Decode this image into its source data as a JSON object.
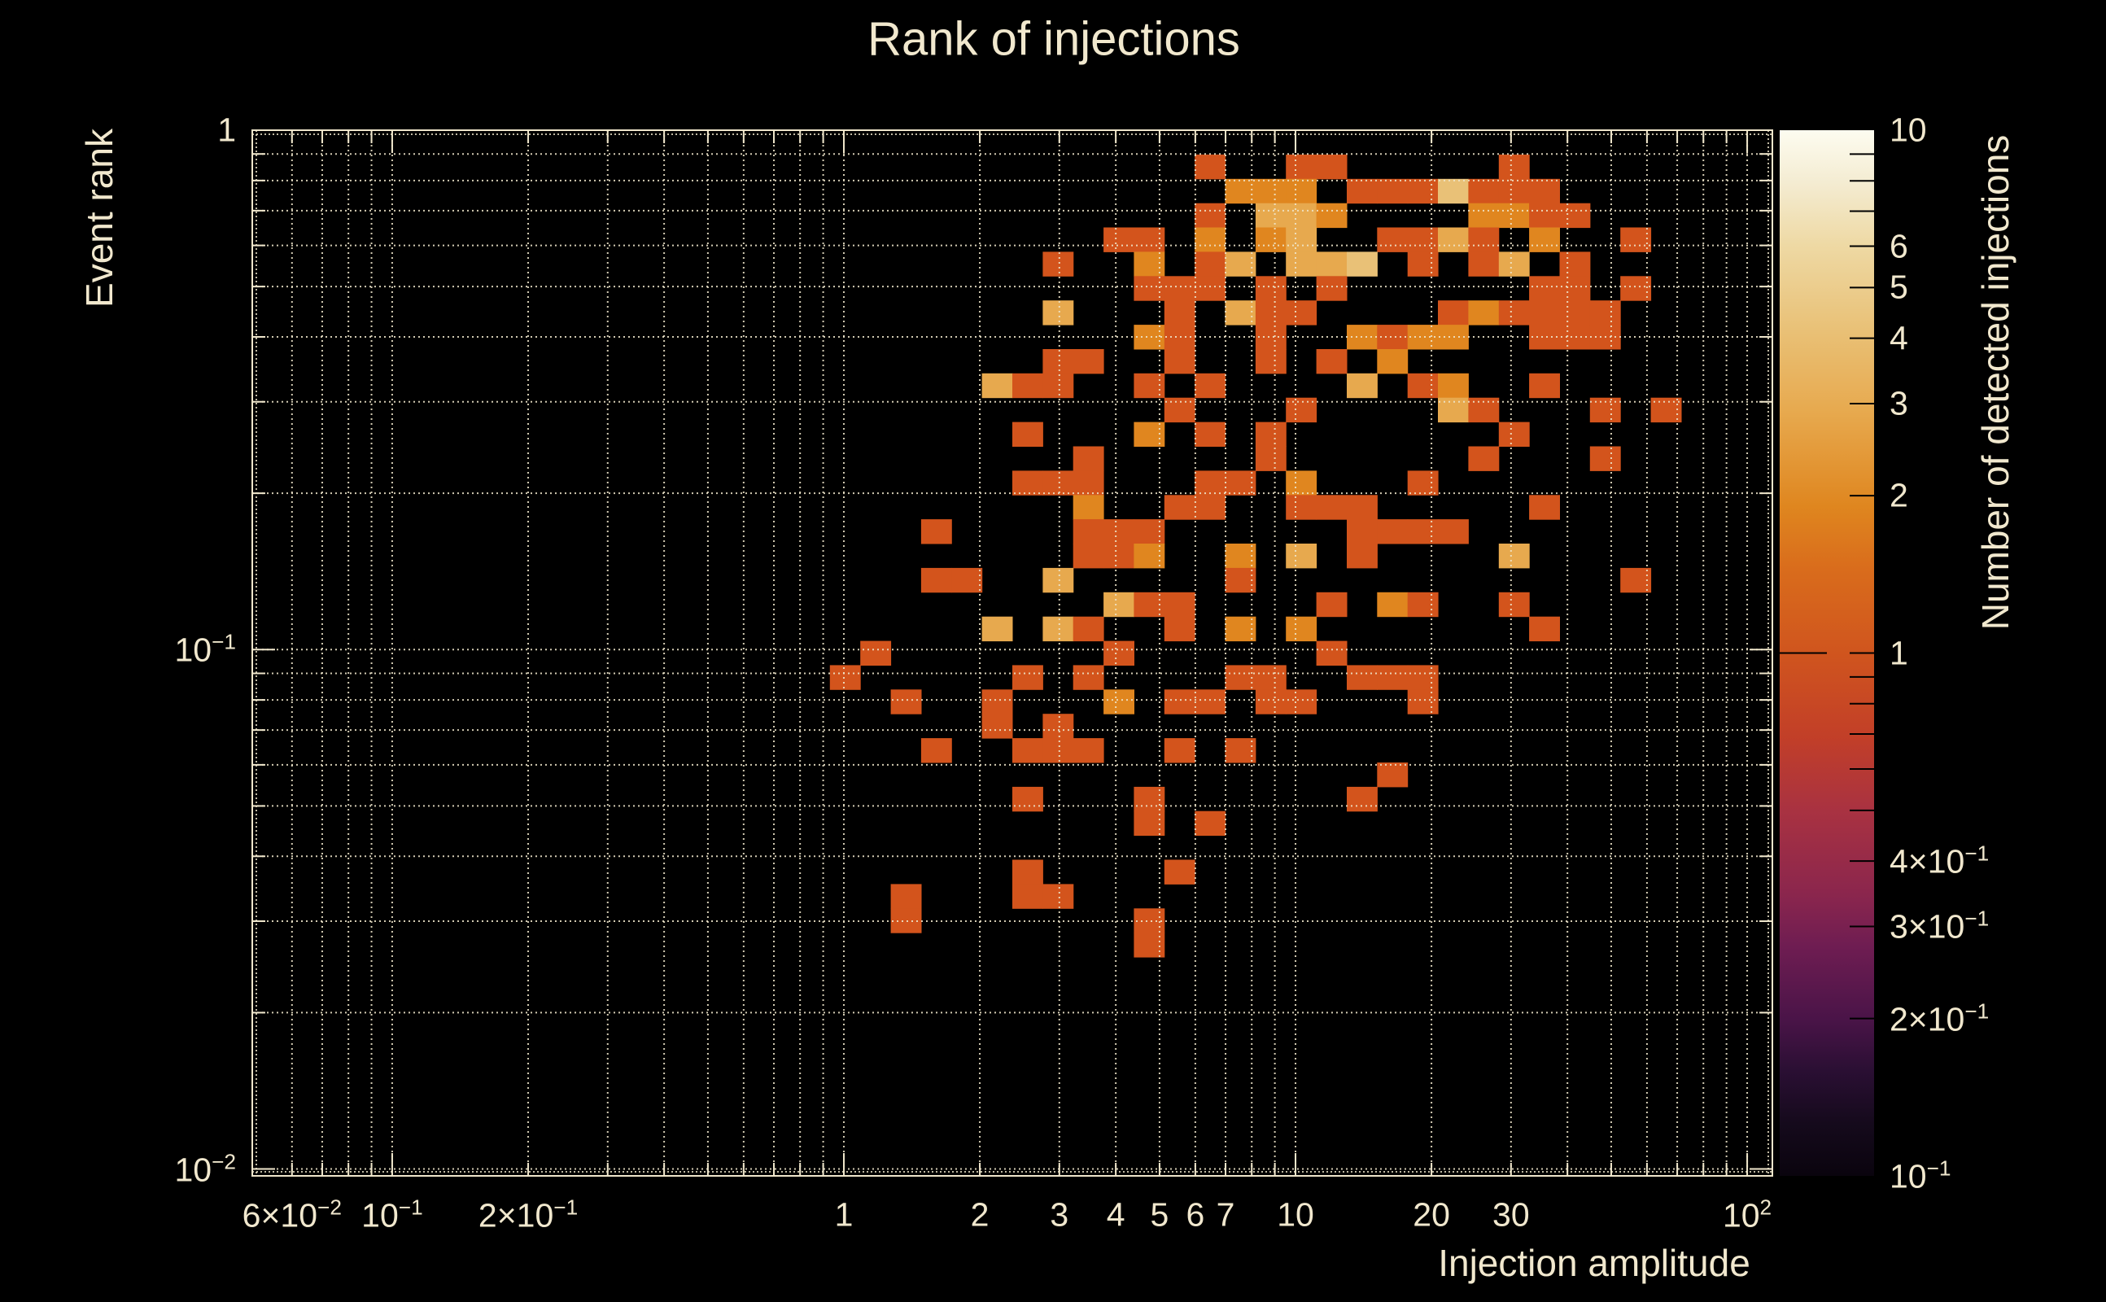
{
  "title": "Rank of injections",
  "colors": {
    "background": "#000000",
    "text": "#f1e8ce",
    "grid": "#efe6cb",
    "frame": "#efe6cb",
    "colorbar_tick": "#000000"
  },
  "chart_data": {
    "type": "heatmap",
    "title": "Rank of injections",
    "xlabel": "Injection amplitude",
    "ylabel": "Event rank",
    "zlabel": "Number of detected injections",
    "x_scale": "log",
    "y_scale": "log",
    "z_scale": "log",
    "xlim": [
      0.049,
      113.7
    ],
    "ylim": [
      0.0097,
      1.0
    ],
    "zlim": [
      0.1,
      10
    ],
    "grid": "on",
    "n_cols": 50,
    "n_rows": 43,
    "x_tick_labels": [
      {
        "value": 0.06,
        "mant": "6×10",
        "exp": "−2"
      },
      {
        "value": 0.1,
        "mant": "10",
        "exp": "−1"
      },
      {
        "value": 0.2,
        "mant": "2×10",
        "exp": "−1"
      },
      {
        "value": 1,
        "mant": "1",
        "exp": ""
      },
      {
        "value": 2,
        "mant": "2",
        "exp": ""
      },
      {
        "value": 3,
        "mant": "3",
        "exp": ""
      },
      {
        "value": 4,
        "mant": "4",
        "exp": ""
      },
      {
        "value": 5,
        "mant": "5",
        "exp": ""
      },
      {
        "value": 6,
        "mant": "6",
        "exp": ""
      },
      {
        "value": 7,
        "mant": "7",
        "exp": ""
      },
      {
        "value": 10,
        "mant": "10",
        "exp": ""
      },
      {
        "value": 20,
        "mant": "20",
        "exp": ""
      },
      {
        "value": 30,
        "mant": "30",
        "exp": ""
      },
      {
        "value": 100,
        "mant": "10",
        "exp": "2"
      }
    ],
    "y_tick_labels": [
      {
        "value": 1,
        "mant": "1",
        "exp": ""
      },
      {
        "value": 0.1,
        "mant": "10",
        "exp": "−1"
      },
      {
        "value": 0.01,
        "mant": "10",
        "exp": "−2"
      }
    ],
    "z_tick_labels": [
      {
        "value": 10,
        "mant": "10",
        "exp": ""
      },
      {
        "value": 6,
        "mant": "6",
        "exp": ""
      },
      {
        "value": 5,
        "mant": "5",
        "exp": ""
      },
      {
        "value": 4,
        "mant": "4",
        "exp": ""
      },
      {
        "value": 3,
        "mant": "3",
        "exp": ""
      },
      {
        "value": 2,
        "mant": "2",
        "exp": ""
      },
      {
        "value": 1,
        "mant": "1",
        "exp": ""
      },
      {
        "value": 0.4,
        "mant": "4×10",
        "exp": "−1"
      },
      {
        "value": 0.3,
        "mant": "3×10",
        "exp": "−1"
      },
      {
        "value": 0.2,
        "mant": "2×10",
        "exp": "−1"
      },
      {
        "value": 0.1,
        "mant": "10",
        "exp": "−1"
      }
    ],
    "z_minor_ticks": [
      0.2,
      0.3,
      0.4,
      0.5,
      0.6,
      0.7,
      0.8,
      0.9,
      2,
      3,
      4,
      5,
      6,
      7,
      8,
      9
    ],
    "grid_x": [
      0.06,
      0.07,
      0.08,
      0.09,
      0.1,
      0.2,
      0.3,
      0.4,
      0.5,
      0.6,
      0.7,
      0.8,
      0.9,
      1,
      2,
      3,
      4,
      5,
      6,
      7,
      8,
      9,
      10,
      20,
      30,
      40,
      50,
      60,
      70,
      80,
      90,
      100
    ],
    "grid_y": [
      0.01,
      0.02,
      0.03,
      0.04,
      0.05,
      0.06,
      0.07,
      0.08,
      0.09,
      0.1,
      0.2,
      0.3,
      0.4,
      0.5,
      0.6,
      0.7,
      0.8,
      0.9
    ],
    "major_x": [
      0.1,
      1,
      10,
      100
    ],
    "major_y": [
      0.01,
      0.1,
      1
    ],
    "value_colors": {
      "1": "#d3541c",
      "2": "#e0861f",
      "3": "#e7a94e",
      "4": "#e9c177",
      "5": "#ecd08e",
      "6": "#eed9a4",
      "10": "#fdfcf0"
    },
    "colorbar_gradient": [
      [
        0.0,
        "#0a040e"
      ],
      [
        0.05,
        "#150a1c"
      ],
      [
        0.1,
        "#2a0f33"
      ],
      [
        0.15,
        "#4a1448"
      ],
      [
        0.22,
        "#6f1d52"
      ],
      [
        0.27,
        "#8b264d"
      ],
      [
        0.35,
        "#a93241"
      ],
      [
        0.42,
        "#c23f28"
      ],
      [
        0.5,
        "#d0551e"
      ],
      [
        0.58,
        "#d96c1c"
      ],
      [
        0.64,
        "#df861f"
      ],
      [
        0.73,
        "#e7a94e"
      ],
      [
        0.81,
        "#e9c177"
      ],
      [
        0.89,
        "#eed9a4"
      ],
      [
        0.95,
        "#f4ecd2"
      ],
      [
        1.0,
        "#fdfcf0"
      ]
    ],
    "cells": [
      [
        31,
        1,
        1
      ],
      [
        34,
        1,
        1
      ],
      [
        35,
        1,
        1
      ],
      [
        41,
        1,
        1
      ],
      [
        32,
        2,
        2
      ],
      [
        33,
        2,
        2
      ],
      [
        34,
        2,
        2
      ],
      [
        36,
        2,
        1
      ],
      [
        37,
        2,
        1
      ],
      [
        38,
        2,
        1
      ],
      [
        39,
        2,
        4
      ],
      [
        40,
        2,
        1
      ],
      [
        41,
        2,
        1
      ],
      [
        42,
        2,
        1
      ],
      [
        31,
        3,
        1
      ],
      [
        33,
        3,
        3
      ],
      [
        34,
        3,
        3
      ],
      [
        35,
        3,
        2
      ],
      [
        40,
        3,
        2
      ],
      [
        41,
        3,
        2
      ],
      [
        42,
        3,
        1
      ],
      [
        43,
        3,
        1
      ],
      [
        28,
        4,
        1
      ],
      [
        29,
        4,
        1
      ],
      [
        31,
        4,
        2
      ],
      [
        33,
        4,
        2
      ],
      [
        34,
        4,
        3
      ],
      [
        37,
        4,
        1
      ],
      [
        38,
        4,
        1
      ],
      [
        39,
        4,
        3
      ],
      [
        40,
        4,
        1
      ],
      [
        42,
        4,
        2
      ],
      [
        45,
        4,
        1
      ],
      [
        26,
        5,
        1
      ],
      [
        29,
        5,
        2
      ],
      [
        31,
        5,
        1
      ],
      [
        32,
        5,
        3
      ],
      [
        34,
        5,
        3
      ],
      [
        35,
        5,
        3
      ],
      [
        36,
        5,
        4
      ],
      [
        38,
        5,
        1
      ],
      [
        40,
        5,
        1
      ],
      [
        41,
        5,
        3
      ],
      [
        43,
        5,
        1
      ],
      [
        29,
        6,
        1
      ],
      [
        30,
        6,
        1
      ],
      [
        31,
        6,
        1
      ],
      [
        33,
        6,
        1
      ],
      [
        35,
        6,
        1
      ],
      [
        42,
        6,
        1
      ],
      [
        43,
        6,
        1
      ],
      [
        45,
        6,
        1
      ],
      [
        26,
        7,
        3
      ],
      [
        30,
        7,
        1
      ],
      [
        32,
        7,
        3
      ],
      [
        33,
        7,
        1
      ],
      [
        34,
        7,
        1
      ],
      [
        39,
        7,
        1
      ],
      [
        40,
        7,
        2
      ],
      [
        41,
        7,
        1
      ],
      [
        42,
        7,
        1
      ],
      [
        43,
        7,
        1
      ],
      [
        44,
        7,
        1
      ],
      [
        29,
        8,
        2
      ],
      [
        30,
        8,
        1
      ],
      [
        33,
        8,
        1
      ],
      [
        36,
        8,
        2
      ],
      [
        37,
        8,
        1
      ],
      [
        38,
        8,
        2
      ],
      [
        39,
        8,
        2
      ],
      [
        42,
        8,
        1
      ],
      [
        43,
        8,
        1
      ],
      [
        44,
        8,
        1
      ],
      [
        26,
        9,
        1
      ],
      [
        27,
        9,
        1
      ],
      [
        30,
        9,
        1
      ],
      [
        33,
        9,
        1
      ],
      [
        35,
        9,
        1
      ],
      [
        37,
        9,
        2
      ],
      [
        24,
        10,
        3
      ],
      [
        25,
        10,
        1
      ],
      [
        26,
        10,
        1
      ],
      [
        29,
        10,
        1
      ],
      [
        31,
        10,
        1
      ],
      [
        36,
        10,
        3
      ],
      [
        38,
        10,
        1
      ],
      [
        39,
        10,
        2
      ],
      [
        42,
        10,
        1
      ],
      [
        30,
        11,
        1
      ],
      [
        34,
        11,
        1
      ],
      [
        39,
        11,
        3
      ],
      [
        40,
        11,
        1
      ],
      [
        44,
        11,
        1
      ],
      [
        46,
        11,
        1
      ],
      [
        25,
        12,
        1
      ],
      [
        29,
        12,
        2
      ],
      [
        31,
        12,
        1
      ],
      [
        33,
        12,
        1
      ],
      [
        41,
        12,
        1
      ],
      [
        27,
        13,
        1
      ],
      [
        33,
        13,
        1
      ],
      [
        40,
        13,
        1
      ],
      [
        44,
        13,
        1
      ],
      [
        25,
        14,
        1
      ],
      [
        26,
        14,
        1
      ],
      [
        27,
        14,
        1
      ],
      [
        31,
        14,
        1
      ],
      [
        32,
        14,
        1
      ],
      [
        34,
        14,
        2
      ],
      [
        38,
        14,
        1
      ],
      [
        27,
        15,
        2
      ],
      [
        30,
        15,
        1
      ],
      [
        31,
        15,
        1
      ],
      [
        34,
        15,
        1
      ],
      [
        35,
        15,
        1
      ],
      [
        36,
        15,
        1
      ],
      [
        42,
        15,
        1
      ],
      [
        22,
        16,
        1
      ],
      [
        27,
        16,
        1
      ],
      [
        28,
        16,
        1
      ],
      [
        29,
        16,
        1
      ],
      [
        36,
        16,
        1
      ],
      [
        37,
        16,
        1
      ],
      [
        38,
        16,
        1
      ],
      [
        39,
        16,
        1
      ],
      [
        27,
        17,
        1
      ],
      [
        28,
        17,
        1
      ],
      [
        29,
        17,
        2
      ],
      [
        32,
        17,
        2
      ],
      [
        34,
        17,
        3
      ],
      [
        36,
        17,
        1
      ],
      [
        41,
        17,
        3
      ],
      [
        22,
        18,
        1
      ],
      [
        23,
        18,
        1
      ],
      [
        26,
        18,
        3
      ],
      [
        32,
        18,
        1
      ],
      [
        45,
        18,
        1
      ],
      [
        28,
        19,
        3
      ],
      [
        29,
        19,
        1
      ],
      [
        30,
        19,
        1
      ],
      [
        35,
        19,
        1
      ],
      [
        37,
        19,
        2
      ],
      [
        38,
        19,
        1
      ],
      [
        41,
        19,
        1
      ],
      [
        24,
        20,
        3
      ],
      [
        26,
        20,
        3
      ],
      [
        27,
        20,
        1
      ],
      [
        30,
        20,
        1
      ],
      [
        32,
        20,
        2
      ],
      [
        34,
        20,
        2
      ],
      [
        42,
        20,
        1
      ],
      [
        20,
        21,
        1
      ],
      [
        28,
        21,
        1
      ],
      [
        35,
        21,
        1
      ],
      [
        19,
        22,
        1
      ],
      [
        25,
        22,
        1
      ],
      [
        27,
        22,
        1
      ],
      [
        32,
        22,
        1
      ],
      [
        33,
        22,
        1
      ],
      [
        36,
        22,
        1
      ],
      [
        37,
        22,
        1
      ],
      [
        38,
        22,
        1
      ],
      [
        21,
        23,
        1
      ],
      [
        24,
        23,
        1
      ],
      [
        28,
        23,
        2
      ],
      [
        30,
        23,
        1
      ],
      [
        31,
        23,
        1
      ],
      [
        33,
        23,
        1
      ],
      [
        34,
        23,
        1
      ],
      [
        38,
        23,
        1
      ],
      [
        24,
        24,
        1
      ],
      [
        26,
        24,
        1
      ],
      [
        22,
        25,
        1
      ],
      [
        25,
        25,
        1
      ],
      [
        26,
        25,
        1
      ],
      [
        27,
        25,
        1
      ],
      [
        30,
        25,
        1
      ],
      [
        32,
        25,
        1
      ],
      [
        37,
        26,
        1
      ],
      [
        25,
        27,
        1
      ],
      [
        29,
        27,
        1
      ],
      [
        36,
        27,
        1
      ],
      [
        29,
        28,
        1
      ],
      [
        31,
        28,
        1
      ],
      [
        25,
        30,
        1
      ],
      [
        30,
        30,
        1
      ],
      [
        21,
        31,
        1
      ],
      [
        25,
        31,
        1
      ],
      [
        26,
        31,
        1
      ],
      [
        21,
        32,
        1
      ],
      [
        29,
        32,
        1
      ],
      [
        29,
        33,
        1
      ]
    ]
  }
}
